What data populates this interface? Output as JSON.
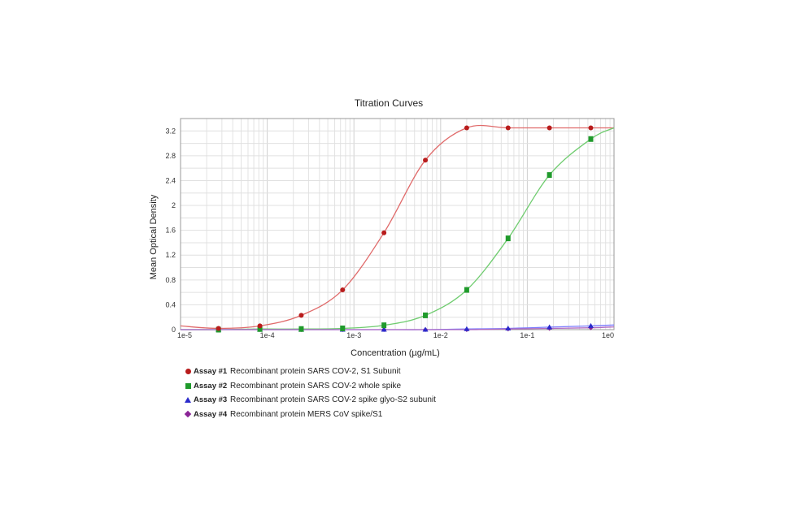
{
  "chart_data": {
    "type": "scatter",
    "title": "Titration Curves",
    "xlabel": "Concentration (µg/mL)",
    "ylabel": "Mean Optical Density",
    "x_scale": "log",
    "xlim": [
      1e-05,
      1
    ],
    "ylim": [
      0,
      3.4
    ],
    "grid": true,
    "x_tick_labels": [
      "1e-5",
      "1e-4",
      "1e-3",
      "1e-2",
      "1e-1",
      "1e0"
    ],
    "x_tick_values": [
      1e-05,
      0.0001,
      0.001,
      0.01,
      0.1,
      1
    ],
    "y_tick_labels": [
      "0",
      "0.4",
      "0.8",
      "1.2",
      "1.6",
      "2",
      "2.4",
      "2.8",
      "3.2"
    ],
    "y_tick_values": [
      0,
      0.4,
      0.8,
      1.2,
      1.6,
      2,
      2.4,
      2.8,
      3.2
    ],
    "legend_position": "below",
    "series": [
      {
        "name": "Assay #1",
        "description": "Recombinant protein SARS COV-2, S1 Subunit",
        "marker": "circle",
        "color": "#b81c1c",
        "curve_color": "#e06a6a",
        "points": [
          [
            2.74e-05,
            0.02
          ],
          [
            8.23e-05,
            0.06
          ],
          [
            0.0002469,
            0.23
          ],
          [
            0.00074,
            0.64
          ],
          [
            0.00222,
            1.56
          ],
          [
            0.00667,
            2.73
          ],
          [
            0.02,
            3.25
          ],
          [
            0.06,
            3.25
          ],
          [
            0.18,
            3.25
          ],
          [
            0.54,
            3.25
          ]
        ]
      },
      {
        "name": "Assay #2",
        "description": "Recombinant protein SARS COV-2 whole spike",
        "marker": "square",
        "color": "#1f9a2b",
        "curve_color": "#6fcc6f",
        "points": [
          [
            2.74e-05,
            0.0
          ],
          [
            8.23e-05,
            0.01
          ],
          [
            0.0002469,
            0.01
          ],
          [
            0.00074,
            0.02
          ],
          [
            0.00222,
            0.07
          ],
          [
            0.00667,
            0.23
          ],
          [
            0.02,
            0.64
          ],
          [
            0.06,
            1.47
          ],
          [
            0.18,
            2.49
          ],
          [
            0.54,
            3.07
          ]
        ]
      },
      {
        "name": "Assay #3",
        "description": "Recombinant protein SARS COV-2 spike glyo-S2 subunit",
        "marker": "triangle",
        "color": "#2a2acb",
        "curve_color": "#7b7bff",
        "points": [
          [
            2.74e-05,
            0.0
          ],
          [
            8.23e-05,
            0.0
          ],
          [
            0.0002469,
            0.0
          ],
          [
            0.00074,
            0.0
          ],
          [
            0.00222,
            0.0
          ],
          [
            0.00667,
            0.0
          ],
          [
            0.02,
            0.01
          ],
          [
            0.06,
            0.02
          ],
          [
            0.18,
            0.04
          ],
          [
            0.54,
            0.06
          ]
        ]
      },
      {
        "name": "Assay #4",
        "description": "Recombinant protein MERS CoV spike/S1",
        "marker": "diamond",
        "color": "#8a2496",
        "curve_color": "#b06ac0",
        "points": [
          [
            2.74e-05,
            0.0
          ],
          [
            8.23e-05,
            0.0
          ],
          [
            0.0002469,
            0.0
          ],
          [
            0.00074,
            0.0
          ],
          [
            0.00222,
            0.0
          ],
          [
            0.00667,
            0.0
          ],
          [
            0.02,
            0.0
          ],
          [
            0.06,
            0.01
          ],
          [
            0.18,
            0.02
          ],
          [
            0.54,
            0.03
          ]
        ]
      }
    ]
  }
}
